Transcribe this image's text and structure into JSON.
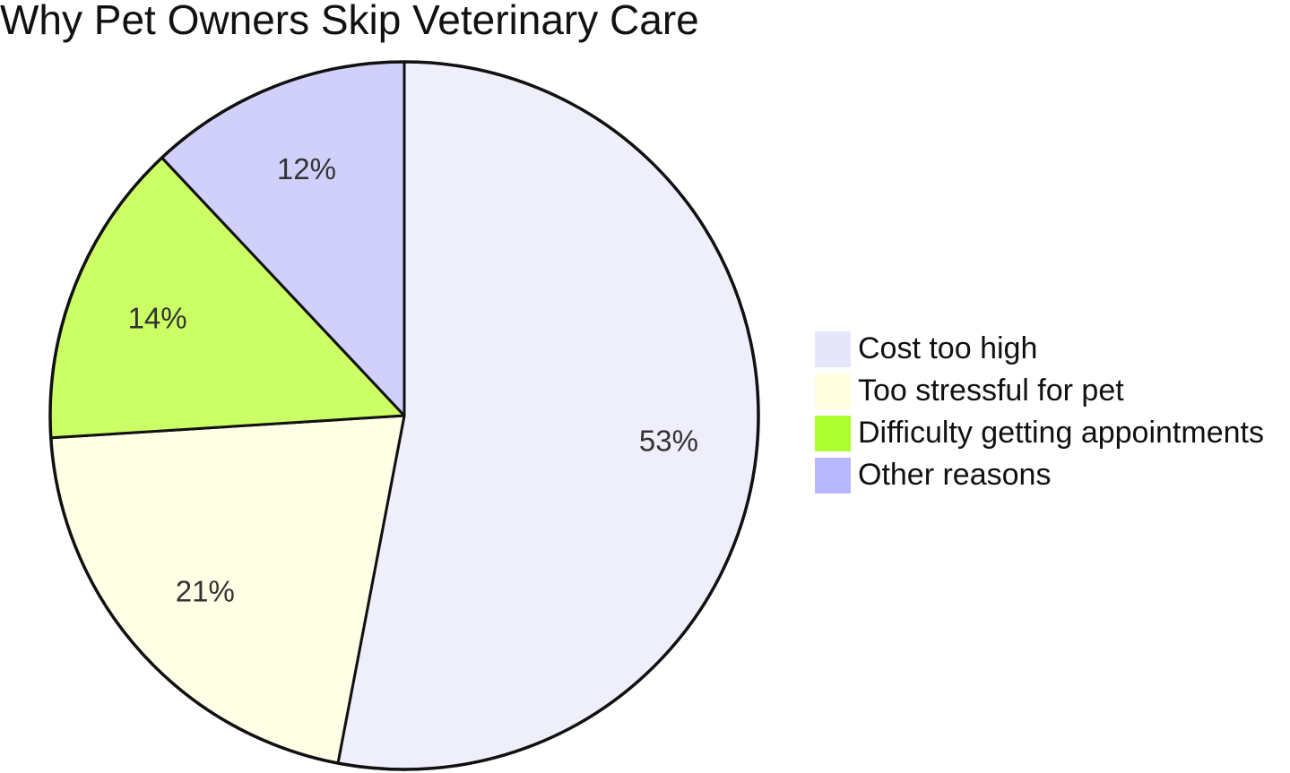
{
  "chart_data": {
    "type": "pie",
    "title": "Why Pet Owners Skip Veterinary Care",
    "categories": [
      "Cost too high",
      "Too stressful for pet",
      "Difficulty getting appointments",
      "Other reasons"
    ],
    "values": [
      53,
      21,
      14,
      12
    ],
    "value_labels": [
      "53%",
      "21%",
      "14%",
      "12%"
    ],
    "colors": [
      "#efeffb",
      "#ffffe6",
      "#ccff66",
      "#d0d0fb"
    ],
    "legend_colors": [
      "#e6e6fa",
      "#ffffe0",
      "#adff2f",
      "#b8b8ff"
    ],
    "legend_position": "right",
    "start_angle": "12 o'clock",
    "direction": "clockwise"
  }
}
